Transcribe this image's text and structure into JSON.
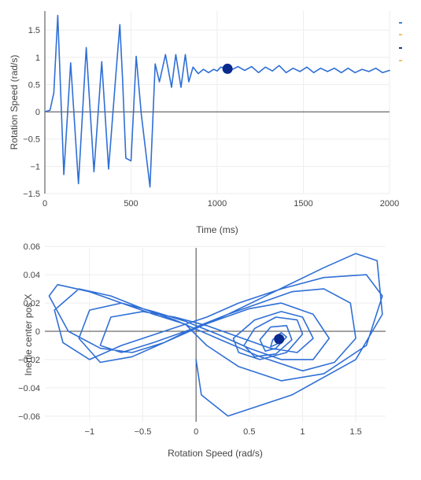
{
  "colors": {
    "trace": "#2f6fd6",
    "marker": "#0a2a8f",
    "legend_mark_1": "#3b82e0",
    "legend_mark_2": "#f2c45a",
    "legend_mark_3": "#1e3a8a",
    "legend_mark_4": "#f2c45a"
  },
  "chart_data": [
    {
      "type": "line",
      "title": "",
      "xlabel": "Time (ms)",
      "ylabel": "Rotation Speed (rad/s)",
      "xlim": [
        0,
        2000
      ],
      "ylim": [
        -1.5,
        1.85
      ],
      "xticks": [
        0,
        500,
        1000,
        1500,
        2000
      ],
      "xtick_labels": [
        "0",
        "500",
        "1000",
        "1500",
        "2000"
      ],
      "yticks": [
        -1.5,
        -1,
        -0.5,
        0,
        0.5,
        1,
        1.5
      ],
      "ytick_labels": [
        "−1.5",
        "−1",
        "−0.5",
        "0",
        "0.5",
        "1",
        "1.5"
      ],
      "grid": true,
      "legend": "top-right (clipped)",
      "series": [
        {
          "x": [
            0,
            30,
            52,
            75,
            110,
            150,
            195,
            240,
            285,
            330,
            370,
            410,
            435,
            450,
            470,
            500,
            530,
            560,
            610,
            640,
            665,
            700,
            735,
            760,
            790,
            815,
            835,
            860,
            890,
            920,
            950,
            980,
            1000,
            1020,
            1060,
            1090,
            1120,
            1160,
            1200,
            1240,
            1280,
            1320,
            1360,
            1400,
            1440,
            1480,
            1520,
            1560,
            1600,
            1640,
            1680,
            1720,
            1760,
            1800,
            1840,
            1880,
            1920,
            1960,
            2000
          ],
          "y": [
            0,
            0.03,
            0.35,
            1.77,
            -1.15,
            0.9,
            -1.32,
            1.18,
            -1.1,
            0.92,
            -1.05,
            0.6,
            1.6,
            0.65,
            -0.85,
            -0.9,
            1.02,
            -0.05,
            -1.38,
            0.88,
            0.55,
            1.05,
            0.45,
            1.05,
            0.45,
            1.05,
            0.55,
            0.82,
            0.7,
            0.78,
            0.72,
            0.78,
            0.75,
            0.82,
            0.79,
            0.78,
            0.83,
            0.76,
            0.83,
            0.72,
            0.82,
            0.75,
            0.85,
            0.72,
            0.8,
            0.74,
            0.82,
            0.72,
            0.8,
            0.74,
            0.8,
            0.72,
            0.8,
            0.72,
            0.78,
            0.74,
            0.8,
            0.72,
            0.76
          ]
        }
      ],
      "marker": {
        "x": 1060,
        "y": 0.79
      }
    },
    {
      "type": "line",
      "title": "",
      "xlabel": "Rotation Speed (rad/s)",
      "ylabel": "Inertie center pos X",
      "xlim": [
        -1.42,
        1.78
      ],
      "ylim": [
        -0.064,
        0.059
      ],
      "xticks": [
        -1,
        -0.5,
        0,
        0.5,
        1,
        1.5
      ],
      "xtick_labels": [
        "−1",
        "−0.5",
        "0",
        "0.5",
        "1",
        "1.5"
      ],
      "yticks": [
        -0.06,
        -0.04,
        -0.02,
        0,
        0.02,
        0.04,
        0.06
      ],
      "ytick_labels": [
        "−0.06",
        "−0.04",
        "−0.02",
        "0",
        "0.02",
        "0.04",
        "0.06"
      ],
      "grid": true,
      "series": [
        {
          "x": [
            0,
            0.05,
            0.3,
            0.9,
            1.5,
            1.75,
            1.7,
            1.5,
            1.2,
            0.9,
            0.6,
            0.3,
            0,
            -0.3,
            -0.6,
            -0.9,
            -1.2,
            -1.38,
            -1.3,
            -1.0,
            -0.7,
            -0.4,
            -0.1,
            0.1,
            0.4,
            0.8,
            1.2,
            1.6,
            1.75,
            1.6,
            1.2,
            0.8,
            0.4,
            0.1,
            -0.3,
            -0.7,
            -1.0,
            -1.25,
            -1.33,
            -1.1,
            -0.8,
            -0.5,
            -0.2,
            0.2,
            0.6,
            1.0,
            1.3,
            1.5,
            1.45,
            1.2,
            0.9,
            0.6,
            0.3,
            0,
            -0.3,
            -0.6,
            -0.9,
            -1.1,
            -1.0,
            -0.7,
            -0.4,
            -0.1,
            0.2,
            0.5,
            0.8,
            1.1,
            1.25,
            1.1,
            0.8,
            0.5,
            0.2,
            -0.1,
            -0.4,
            -0.7,
            -0.9,
            -0.8,
            -0.5,
            -0.2,
            0.1,
            0.4,
            0.7,
            0.95,
            1.1,
            1.0,
            0.8,
            0.55,
            0.35,
            0.4,
            0.6,
            0.85,
            1.0,
            0.95,
            0.75,
            0.55,
            0.45,
            0.55,
            0.75,
            0.9,
            0.85,
            0.7,
            0.6,
            0.65,
            0.75,
            0.85,
            0.8,
            0.72,
            0.7,
            0.76,
            0.8,
            0.78
          ],
          "y": [
            -0.02,
            -0.045,
            -0.06,
            -0.045,
            -0.02,
            0.012,
            0.05,
            0.055,
            0.045,
            0.034,
            0.023,
            0.012,
            0.002,
            -0.008,
            -0.015,
            -0.012,
            0.0,
            0.025,
            0.033,
            0.028,
            0.02,
            0.012,
            0.005,
            -0.01,
            -0.025,
            -0.035,
            -0.03,
            -0.01,
            0.025,
            0.04,
            0.038,
            0.03,
            0.02,
            0.01,
            0.0,
            -0.01,
            -0.02,
            -0.008,
            0.015,
            0.03,
            0.025,
            0.016,
            0.008,
            -0.005,
            -0.018,
            -0.028,
            -0.022,
            -0.005,
            0.02,
            0.03,
            0.028,
            0.02,
            0.012,
            0.003,
            -0.008,
            -0.018,
            -0.022,
            -0.005,
            0.015,
            0.02,
            0.014,
            0.007,
            -0.002,
            -0.012,
            -0.02,
            -0.02,
            -0.005,
            0.012,
            0.02,
            0.016,
            0.008,
            0.0,
            -0.008,
            -0.015,
            -0.01,
            0.01,
            0.014,
            0.01,
            0.004,
            -0.004,
            -0.012,
            -0.015,
            -0.005,
            0.01,
            0.014,
            0.008,
            -0.005,
            -0.015,
            -0.02,
            -0.015,
            -0.002,
            0.008,
            0.01,
            0.002,
            -0.01,
            -0.018,
            -0.016,
            -0.006,
            0.004,
            0.003,
            -0.006,
            -0.014,
            -0.012,
            -0.004,
            -0.001,
            -0.006,
            -0.011,
            -0.009,
            -0.005,
            -0.006
          ]
        }
      ],
      "marker": {
        "x": 0.78,
        "y": -0.0055
      }
    }
  ]
}
